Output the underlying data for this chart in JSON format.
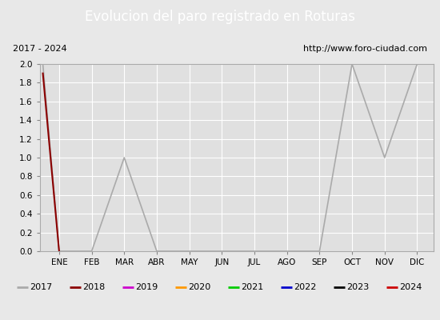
{
  "title": "Evolucion del paro registrado en Roturas",
  "title_bgcolor": "#4472c4",
  "title_color": "white",
  "subtitle_left": "2017 - 2024",
  "subtitle_right": "http://www.foro-ciudad.com",
  "months": [
    "ENE",
    "FEB",
    "MAR",
    "ABR",
    "MAY",
    "JUN",
    "JUL",
    "AGO",
    "SEP",
    "OCT",
    "NOV",
    "DIC"
  ],
  "ylim": [
    0.0,
    2.0
  ],
  "yticks": [
    0.0,
    0.2,
    0.4,
    0.6,
    0.8,
    1.0,
    1.2,
    1.4,
    1.6,
    1.8,
    2.0
  ],
  "series": [
    {
      "year": "2017",
      "color": "#aaaaaa",
      "lw": 1.2,
      "x": [
        -0.5,
        0,
        1,
        2,
        3,
        4,
        5,
        6,
        7,
        8,
        9,
        10,
        11
      ],
      "y": [
        2.0,
        0.0,
        0.0,
        1.0,
        0.0,
        0.0,
        0.0,
        0.0,
        0.0,
        0.0,
        2.0,
        1.0,
        2.0
      ]
    },
    {
      "year": "2018",
      "color": "#8b0000",
      "lw": 1.5,
      "x": [
        -0.5,
        0
      ],
      "y": [
        1.9,
        0.0
      ]
    },
    {
      "year": "2019",
      "color": "#cc00cc",
      "lw": 1.2,
      "x": [],
      "y": []
    },
    {
      "year": "2020",
      "color": "#ff9900",
      "lw": 1.2,
      "x": [],
      "y": []
    },
    {
      "year": "2021",
      "color": "#00cc00",
      "lw": 1.2,
      "x": [],
      "y": []
    },
    {
      "year": "2022",
      "color": "#0000cc",
      "lw": 1.2,
      "x": [],
      "y": []
    },
    {
      "year": "2023",
      "color": "#000000",
      "lw": 1.2,
      "x": [],
      "y": []
    },
    {
      "year": "2024",
      "color": "#cc0000",
      "lw": 1.5,
      "x": [],
      "y": []
    }
  ],
  "fig_width": 5.5,
  "fig_height": 4.0,
  "fig_dpi": 100,
  "bg_color": "#e8e8e8",
  "plot_bg_color": "#e0e0e0",
  "subtitle_bg": "#ffffff",
  "legend_bg": "#f0f0f0",
  "grid_color": "#ffffff",
  "title_fontsize": 12,
  "subtitle_fontsize": 8,
  "tick_fontsize": 7.5,
  "legend_fontsize": 8
}
